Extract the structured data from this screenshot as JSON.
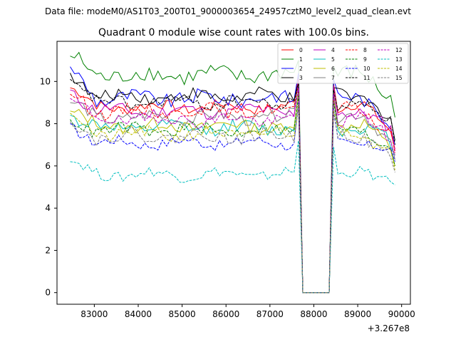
{
  "suptitle": "Data file: modeM0/AS1T03_200T01_9000003654_24957cztM0_level2_quad_clean.evt",
  "chart_data": {
    "type": "line",
    "title": "Quadrant 0 module wise count rates with 100.0s bins.",
    "xlabel": "",
    "ylabel": "",
    "x_offset_label": "+3.267e8",
    "xlim": [
      82150,
      90200
    ],
    "ylim": [
      -0.55,
      11.9
    ],
    "x_ticks": [
      83000,
      84000,
      85000,
      86000,
      87000,
      88000,
      89000,
      90000
    ],
    "y_ticks": [
      0,
      2,
      4,
      6,
      8,
      10
    ],
    "x_start": 82450,
    "x_step": 100,
    "n_points": 75,
    "gap": {
      "start": 87750,
      "end": 88350,
      "value": 0
    },
    "legend_location": "top-right",
    "series": [
      {
        "name": "0",
        "color": "#ff0000",
        "dash": "solid",
        "level": 8.8,
        "amp": 0.25,
        "start": 9.7,
        "end": 6.8,
        "peak": 10.2
      },
      {
        "name": "1",
        "color": "#008000",
        "dash": "solid",
        "level": 10.3,
        "amp": 0.4,
        "start": 11.2,
        "end": 8.3,
        "peak": 11.0
      },
      {
        "name": "2",
        "color": "#0000ff",
        "dash": "solid",
        "level": 9.2,
        "amp": 0.35,
        "start": 10.7,
        "end": 7.0,
        "peak": 10.4
      },
      {
        "name": "3",
        "color": "#000000",
        "dash": "solid",
        "level": 9.3,
        "amp": 0.3,
        "start": 10.4,
        "end": 7.2,
        "peak": 10.0
      },
      {
        "name": "4",
        "color": "#bf00bf",
        "dash": "solid",
        "level": 8.6,
        "amp": 0.3,
        "start": 9.6,
        "end": 6.7,
        "peak": 10.1
      },
      {
        "name": "5",
        "color": "#00bfbf",
        "dash": "solid",
        "level": 7.8,
        "amp": 0.3,
        "start": 8.4,
        "end": 6.5,
        "peak": 9.6
      },
      {
        "name": "6",
        "color": "#bfbf00",
        "dash": "solid",
        "level": 7.9,
        "amp": 0.3,
        "start": 8.6,
        "end": 6.0,
        "peak": 9.5
      },
      {
        "name": "7",
        "color": "#808080",
        "dash": "solid",
        "level": 8.3,
        "amp": 0.3,
        "start": 9.0,
        "end": 6.3,
        "peak": 9.8
      },
      {
        "name": "8",
        "color": "#ff0000",
        "dash": "dashed",
        "level": 8.6,
        "amp": 0.3,
        "start": 9.4,
        "end": 6.6,
        "peak": 9.9
      },
      {
        "name": "9",
        "color": "#008000",
        "dash": "dashed",
        "level": 7.7,
        "amp": 0.3,
        "start": 8.2,
        "end": 6.0,
        "peak": 9.3
      },
      {
        "name": "10",
        "color": "#0000ff",
        "dash": "dashed",
        "level": 7.1,
        "amp": 0.25,
        "start": 8.0,
        "end": 6.2,
        "peak": 9.0
      },
      {
        "name": "11",
        "color": "#000000",
        "dash": "dashed",
        "level": 9.0,
        "amp": 0.3,
        "start": 10.1,
        "end": 7.0,
        "peak": 9.9
      },
      {
        "name": "12",
        "color": "#bf00bf",
        "dash": "dashed",
        "level": 8.2,
        "amp": 0.3,
        "start": 9.2,
        "end": 6.5,
        "peak": 9.7
      },
      {
        "name": "13",
        "color": "#00bfbf",
        "dash": "dashed",
        "level": 5.6,
        "amp": 0.25,
        "start": 6.2,
        "end": 5.1,
        "peak": 7.2
      },
      {
        "name": "14",
        "color": "#bfbf00",
        "dash": "dashed",
        "level": 7.5,
        "amp": 0.3,
        "start": 8.5,
        "end": 5.8,
        "peak": 8.9
      },
      {
        "name": "15",
        "color": "#808080",
        "dash": "dashed",
        "level": 7.4,
        "amp": 0.3,
        "start": 8.1,
        "end": 5.7,
        "peak": 8.8
      }
    ]
  }
}
